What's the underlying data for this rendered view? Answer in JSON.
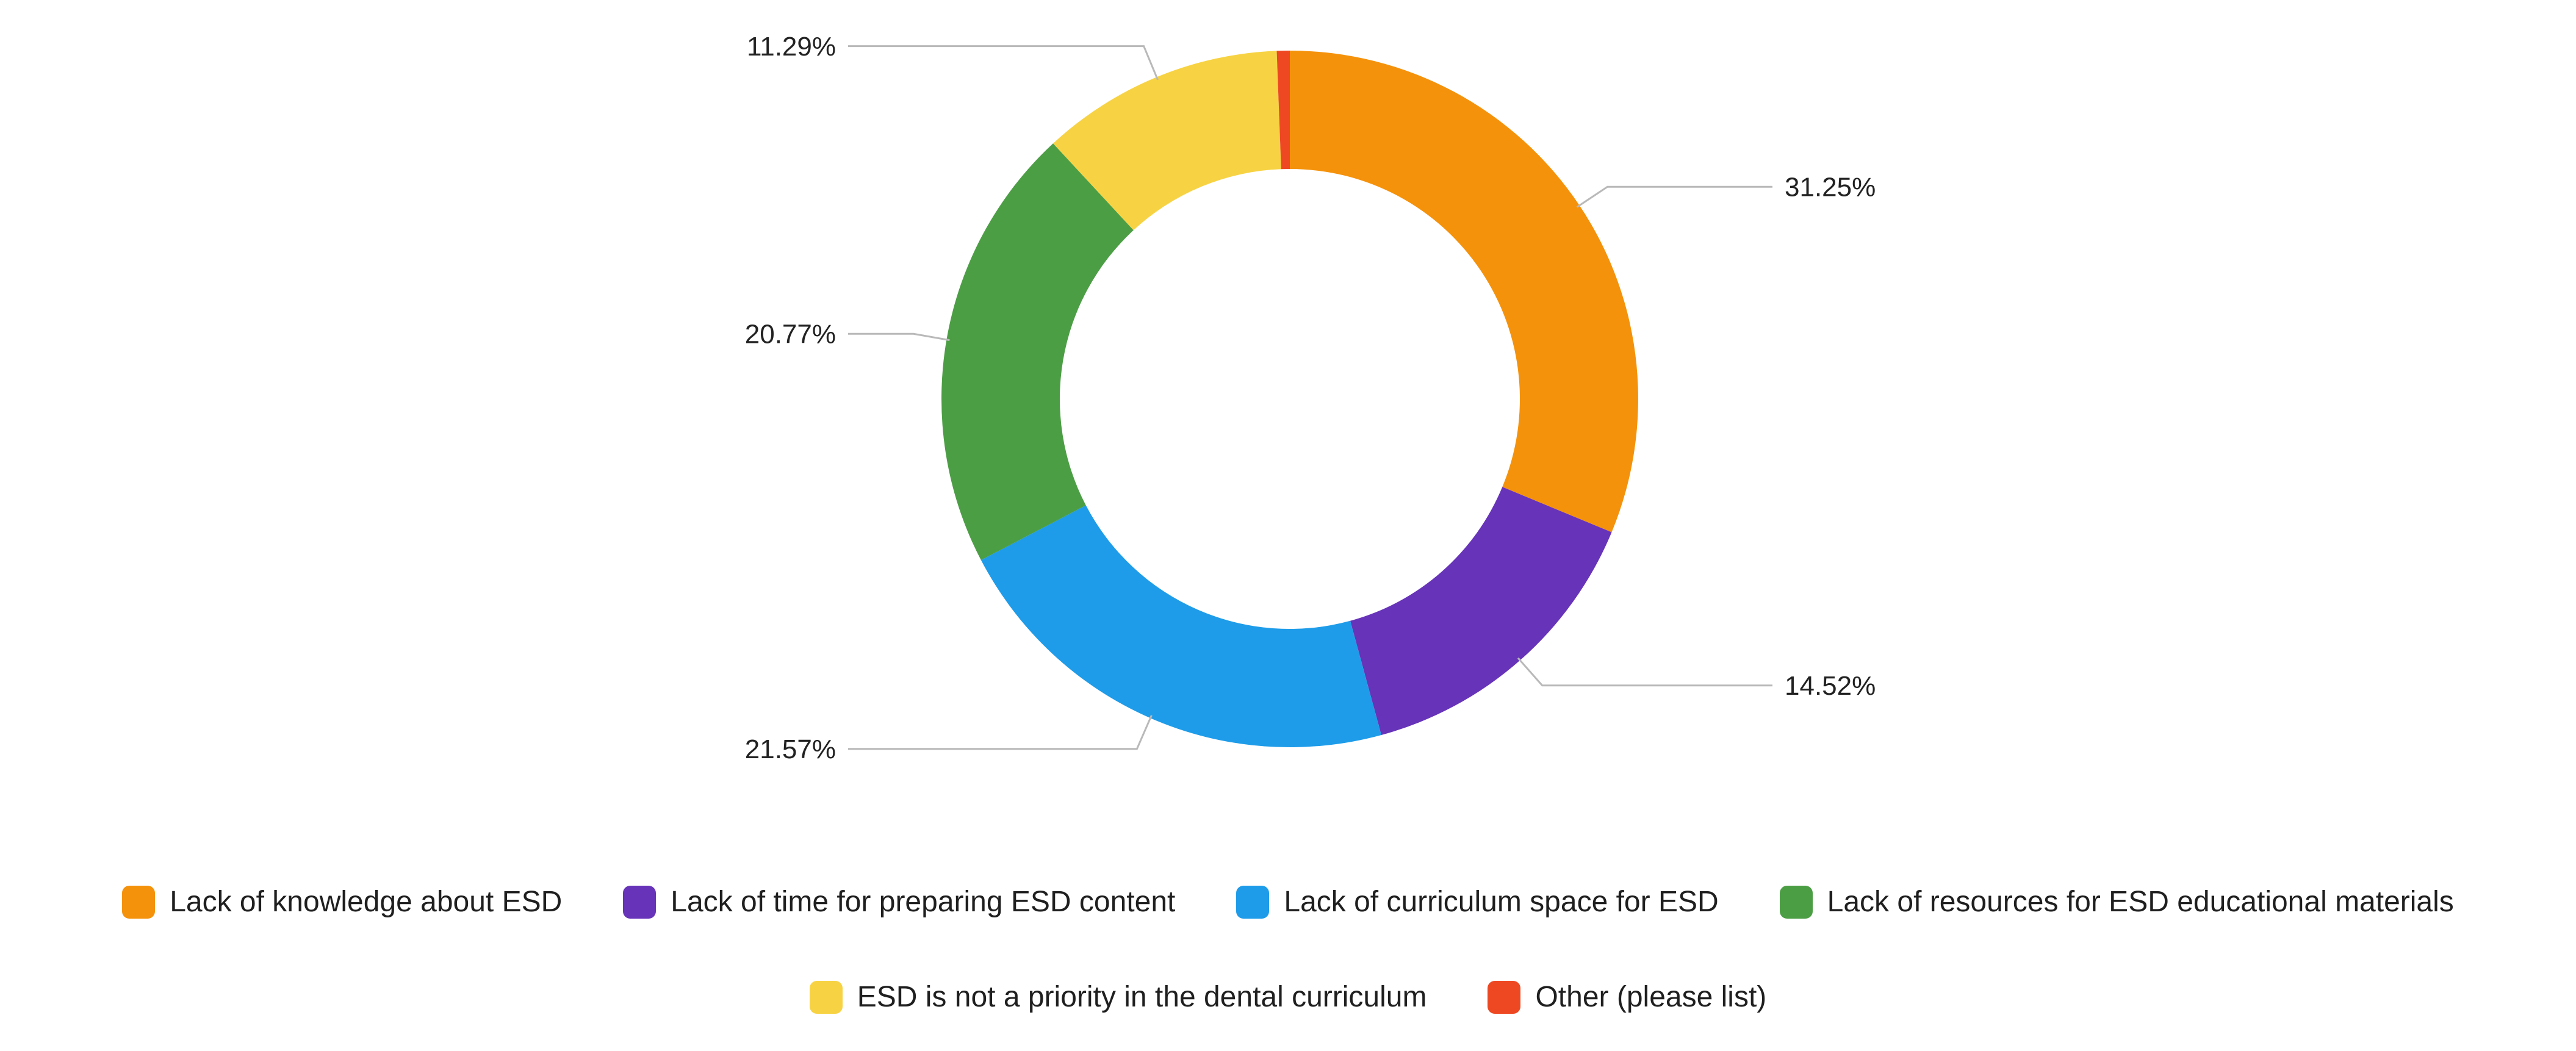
{
  "chart_data": {
    "type": "pie",
    "subtype": "donut",
    "title": "",
    "direction": "clockwise",
    "start_angle_deg": 0,
    "inner_radius_ratio": 0.66,
    "legend_position": "bottom",
    "slices": [
      {
        "label": "Lack of knowledge about ESD",
        "value": 31.25,
        "percent_label": "31.25%",
        "color": "#F5920B"
      },
      {
        "label": "Lack of time for preparing ESD content",
        "value": 14.52,
        "percent_label": "14.52%",
        "color": "#6733B9"
      },
      {
        "label": "Lack of curriculum space for ESD",
        "value": 21.57,
        "percent_label": "21.57%",
        "color": "#1E9CE9"
      },
      {
        "label": "Lack of resources for ESD educational materials",
        "value": 20.77,
        "percent_label": "20.77%",
        "color": "#4C9E45"
      },
      {
        "label": "ESD is not a priority in the dental curriculum",
        "value": 11.29,
        "percent_label": "11.29%",
        "color": "#F7D344"
      },
      {
        "label": "Other (please list)",
        "value": 0.6,
        "percent_label": "",
        "color": "#EE4823"
      }
    ],
    "legend_rows": [
      [
        0,
        1,
        2,
        3
      ],
      [
        4,
        5
      ]
    ]
  },
  "colors": {
    "background": "#FFFFFF",
    "connector": "#B9B9B9",
    "label_text": "#222222"
  }
}
